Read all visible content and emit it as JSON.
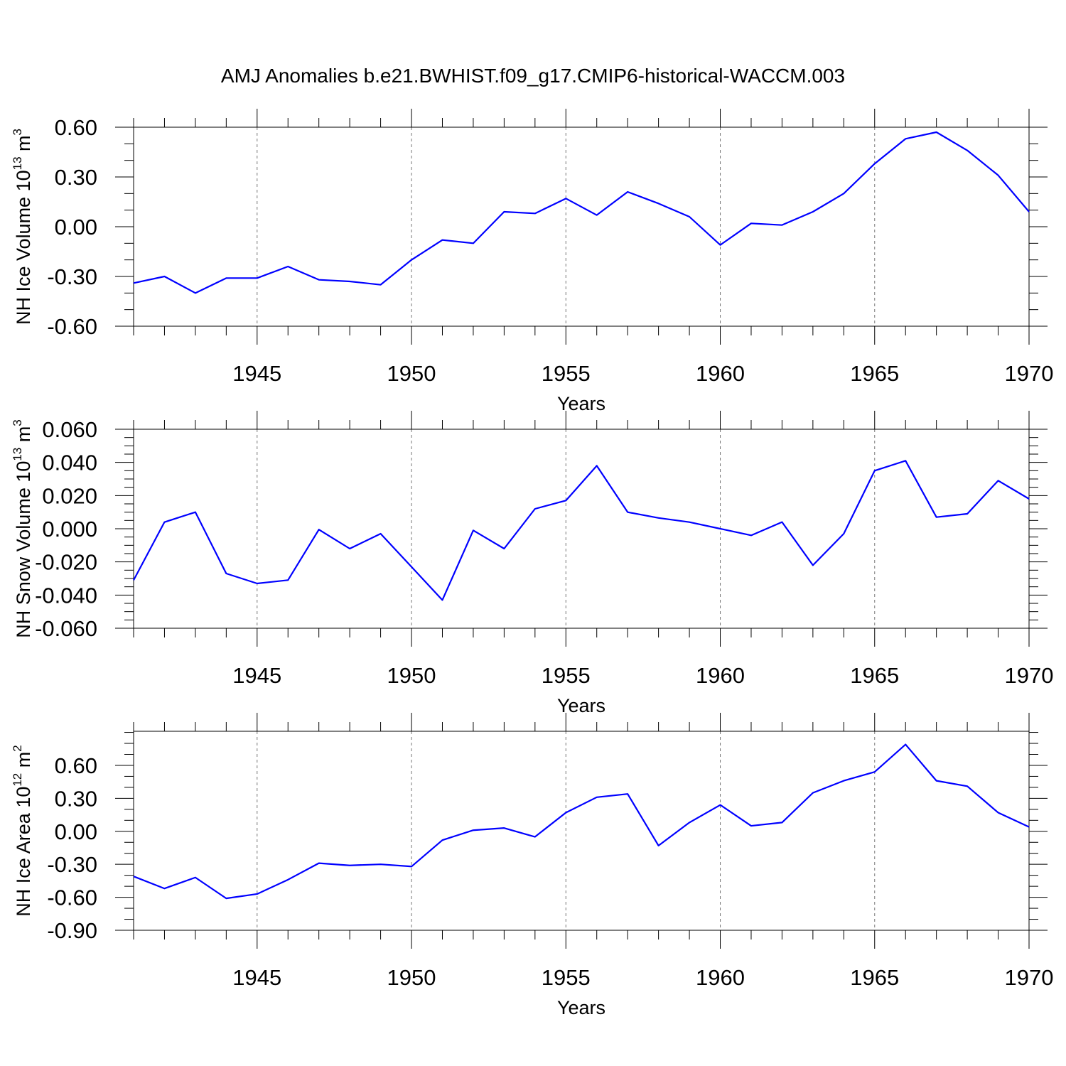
{
  "title": "AMJ Anomalies b.e21.BWHIST.f09_g17.CMIP6-historical-WACCM.003",
  "line_color": "#0000ff",
  "chart_data": [
    {
      "type": "line",
      "xlabel": "Years",
      "ylabel": {
        "text": "NH Ice Volume 10",
        "exp1": "13",
        "unit": " m",
        "exp2": "3"
      },
      "xlim": [
        1941,
        1970
      ],
      "ylim": [
        -0.6,
        0.6
      ],
      "xticks": [
        1945,
        1950,
        1955,
        1960,
        1965,
        1970
      ],
      "xtick_labels": [
        "1945",
        "1950",
        "1955",
        "1960",
        "1965",
        "1970"
      ],
      "yticks": [
        -0.6,
        -0.3,
        0.0,
        0.3,
        0.6
      ],
      "ytick_labels": [
        "-0.60",
        "-0.30",
        "0.00",
        "0.30",
        "0.60"
      ],
      "yminor_step": 0.1,
      "x": [
        1941,
        1942,
        1943,
        1944,
        1945,
        1946,
        1947,
        1948,
        1949,
        1950,
        1951,
        1952,
        1953,
        1954,
        1955,
        1956,
        1957,
        1958,
        1959,
        1960,
        1961,
        1962,
        1963,
        1964,
        1965,
        1966,
        1967,
        1968,
        1969,
        1970
      ],
      "y": [
        -0.34,
        -0.3,
        -0.4,
        -0.31,
        -0.31,
        -0.24,
        -0.32,
        -0.33,
        -0.35,
        -0.2,
        -0.08,
        -0.1,
        0.09,
        0.08,
        0.17,
        0.07,
        0.21,
        0.14,
        0.06,
        -0.11,
        0.02,
        0.01,
        0.09,
        0.2,
        0.38,
        0.53,
        0.57,
        0.46,
        0.31,
        0.09
      ]
    },
    {
      "type": "line",
      "xlabel": "Years",
      "ylabel": {
        "text": "NH Snow Volume 10",
        "exp1": "13",
        "unit": " m",
        "exp2": "3"
      },
      "xlim": [
        1941,
        1970
      ],
      "ylim": [
        -0.06,
        0.06
      ],
      "xticks": [
        1945,
        1950,
        1955,
        1960,
        1965,
        1970
      ],
      "xtick_labels": [
        "1945",
        "1950",
        "1955",
        "1960",
        "1965",
        "1970"
      ],
      "yticks": [
        -0.06,
        -0.04,
        -0.02,
        0.0,
        0.02,
        0.04,
        0.06
      ],
      "ytick_labels": [
        "-0.060",
        "-0.040",
        "-0.020",
        "0.000",
        "0.020",
        "0.040",
        "0.060"
      ],
      "yminor_step": 0.005,
      "x": [
        1941,
        1942,
        1943,
        1944,
        1945,
        1946,
        1947,
        1948,
        1949,
        1950,
        1951,
        1952,
        1953,
        1954,
        1955,
        1956,
        1957,
        1958,
        1959,
        1960,
        1961,
        1962,
        1963,
        1964,
        1965,
        1966,
        1967,
        1968,
        1969,
        1970
      ],
      "y": [
        -0.031,
        0.004,
        0.01,
        -0.027,
        -0.033,
        -0.031,
        -0.0005,
        -0.012,
        -0.003,
        -0.023,
        -0.043,
        -0.001,
        -0.012,
        0.012,
        0.017,
        0.038,
        0.01,
        0.0065,
        0.004,
        0.0,
        -0.004,
        0.004,
        -0.022,
        -0.003,
        0.035,
        0.041,
        0.007,
        0.009,
        0.029,
        0.018
      ]
    },
    {
      "type": "line",
      "xlabel": "Years",
      "ylabel": {
        "text": "NH Ice Area 10",
        "exp1": "12",
        "unit": " m",
        "exp2": "2"
      },
      "xlim": [
        1941,
        1970
      ],
      "ylim": [
        -0.9,
        0.91
      ],
      "xticks": [
        1945,
        1950,
        1955,
        1960,
        1965,
        1970
      ],
      "xtick_labels": [
        "1945",
        "1950",
        "1955",
        "1960",
        "1965",
        "1970"
      ],
      "yticks": [
        -0.9,
        -0.6,
        -0.3,
        0.0,
        0.3,
        0.6
      ],
      "ytick_labels": [
        "-0.90",
        "-0.60",
        "-0.30",
        "0.00",
        "0.30",
        "0.60"
      ],
      "yminor_step": 0.1,
      "x": [
        1941,
        1942,
        1943,
        1944,
        1945,
        1946,
        1947,
        1948,
        1949,
        1950,
        1951,
        1952,
        1953,
        1954,
        1955,
        1956,
        1957,
        1958,
        1959,
        1960,
        1961,
        1962,
        1963,
        1964,
        1965,
        1966,
        1967,
        1968,
        1969,
        1970
      ],
      "y": [
        -0.41,
        -0.52,
        -0.42,
        -0.61,
        -0.57,
        -0.44,
        -0.29,
        -0.31,
        -0.3,
        -0.32,
        -0.08,
        0.01,
        0.03,
        -0.05,
        0.17,
        0.31,
        0.34,
        -0.13,
        0.08,
        0.24,
        0.05,
        0.08,
        0.35,
        0.46,
        0.54,
        0.79,
        0.46,
        0.41,
        0.17,
        0.04
      ]
    }
  ]
}
